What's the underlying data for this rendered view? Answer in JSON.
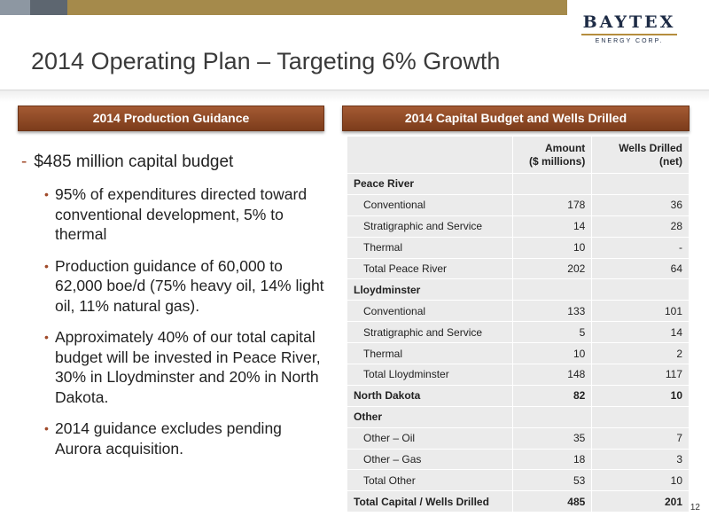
{
  "header": {
    "title": "2014 Operating Plan – Targeting 6% Growth",
    "logo_name": "BAYTEX",
    "logo_sub": "ENERGY CORP.",
    "colors": {
      "bar": "#a58a4b",
      "accent": "#a04a2a",
      "header_box": "#8e4a26"
    }
  },
  "left": {
    "heading": "2014 Production Guidance",
    "main_bullet": "$485 million capital budget",
    "sub_bullets": [
      "95% of expenditures directed toward conventional development, 5% to thermal",
      "Production guidance of 60,000 to 62,000 boe/d (75% heavy oil, 14% light oil, 11% natural gas).",
      "Approximately 40% of our total capital budget will be invested in Peace River, 30% in Lloydminster and 20% in North Dakota.",
      "2014 guidance excludes pending Aurora acquisition."
    ]
  },
  "right": {
    "heading": "2014 Capital Budget and Wells Drilled",
    "col_amount_1": "Amount",
    "col_amount_2": "($ millions)",
    "col_wells_1": "Wells Drilled",
    "col_wells_2": "(net)",
    "rows": [
      {
        "label": "Peace River",
        "amount": "",
        "wells": ""
      },
      {
        "label": "Conventional",
        "amount": "178",
        "wells": "36"
      },
      {
        "label": "Stratigraphic and Service",
        "amount": "14",
        "wells": "28"
      },
      {
        "label": "Thermal",
        "amount": "10",
        "wells": "-"
      },
      {
        "label": "Total Peace River",
        "amount": "202",
        "wells": "64"
      },
      {
        "label": "Lloydminster",
        "amount": "",
        "wells": ""
      },
      {
        "label": "Conventional",
        "amount": "133",
        "wells": "101"
      },
      {
        "label": "Stratigraphic and Service",
        "amount": "5",
        "wells": "14"
      },
      {
        "label": "Thermal",
        "amount": "10",
        "wells": "2"
      },
      {
        "label": "Total Lloydminster",
        "amount": "148",
        "wells": "117"
      },
      {
        "label": "North Dakota",
        "amount": "82",
        "wells": "10"
      },
      {
        "label": "Other",
        "amount": "",
        "wells": ""
      },
      {
        "label": "Other – Oil",
        "amount": "35",
        "wells": "7"
      },
      {
        "label": "Other – Gas",
        "amount": "18",
        "wells": "3"
      },
      {
        "label": "Total Other",
        "amount": "53",
        "wells": "10"
      },
      {
        "label": "Total Capital / Wells Drilled",
        "amount": "485",
        "wells": "201"
      }
    ]
  },
  "footer": {
    "page_number": "12"
  }
}
